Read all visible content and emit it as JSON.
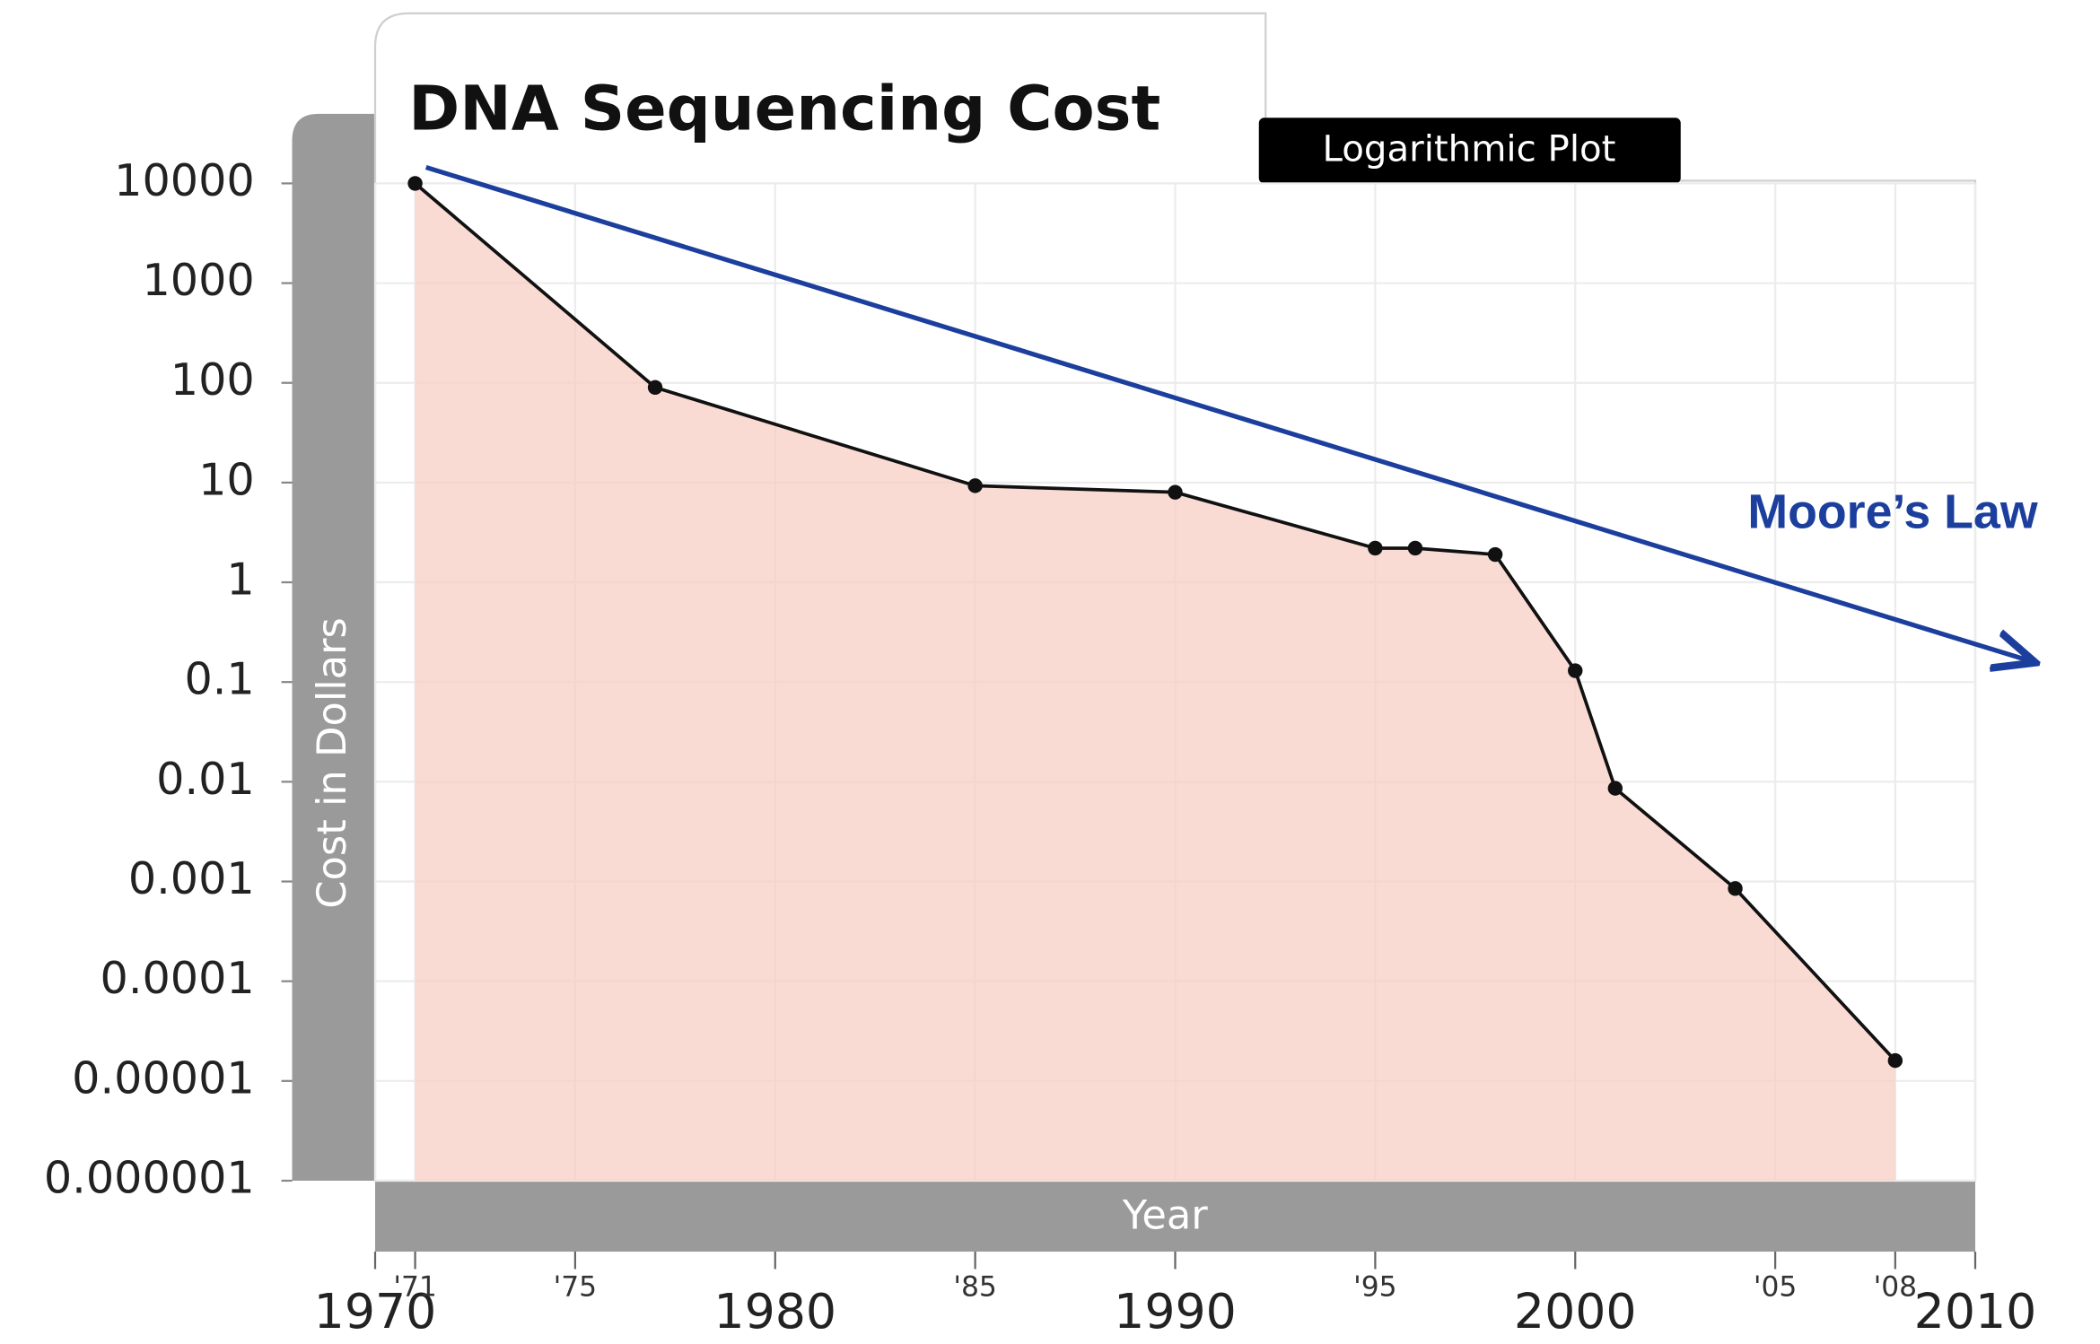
{
  "chart_data": {
    "type": "line",
    "title": "DNA Sequencing Cost",
    "subtitle": "Logarithmic Plot",
    "x_label": "Year",
    "y_label": "Cost in Dollars",
    "annotation": "Moore’s Law",
    "x": [
      1971,
      1977,
      1985,
      1990,
      1995,
      1996,
      1998,
      2000,
      2001,
      2004,
      2008
    ],
    "values": [
      10000,
      90,
      9.3,
      8,
      2.2,
      2.2,
      1.9,
      0.13,
      0.0086,
      0.00085,
      1.6e-05
    ],
    "color": "#111111",
    "area_color": "#f7cfc6",
    "log_y": true,
    "grid": true,
    "xlim": [
      1970,
      2010
    ],
    "ylim": [
      1e-06,
      10000
    ],
    "xticks": [
      1970,
      {
        "value": 1971,
        "label": "'71"
      },
      {
        "value": 1975,
        "label": "'75"
      },
      1980,
      {
        "value": 1985,
        "label": "'85"
      },
      1990,
      {
        "value": 1995,
        "label": "'95"
      },
      2000,
      {
        "value": 2005,
        "label": "'05"
      },
      {
        "value": 2008,
        "label": "'08"
      },
      2010
    ],
    "yticks": [
      10000,
      1000,
      100,
      10,
      1,
      0.1,
      0.01,
      0.001,
      0.0001,
      1e-05,
      1e-06
    ]
  }
}
